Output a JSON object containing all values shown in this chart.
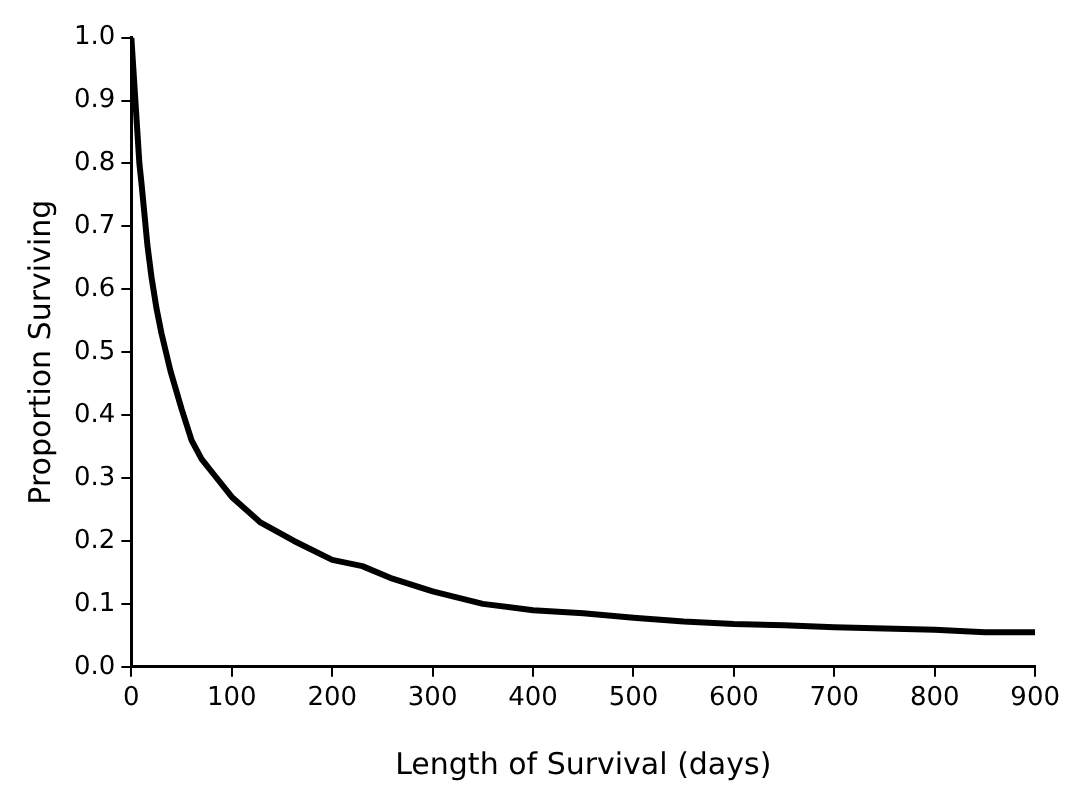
{
  "chart_data": {
    "type": "line",
    "xlabel": "Length of Survival (days)",
    "ylabel": "Proportion Surviving",
    "x": [
      0,
      2,
      4,
      6,
      8,
      10,
      13,
      16,
      20,
      25,
      30,
      39,
      50,
      60,
      70,
      80,
      100,
      128,
      162,
      200,
      230,
      260,
      300,
      350,
      400,
      450,
      500,
      550,
      600,
      650,
      700,
      750,
      800,
      850,
      900
    ],
    "series": [
      {
        "color": "#000000",
        "values": [
          1.0,
          0.95,
          0.9,
          0.85,
          0.8,
          0.77,
          0.72,
          0.67,
          0.62,
          0.57,
          0.53,
          0.47,
          0.41,
          0.36,
          0.33,
          0.31,
          0.27,
          0.23,
          0.2,
          0.17,
          0.16,
          0.14,
          0.12,
          0.1,
          0.09,
          0.085,
          0.078,
          0.072,
          0.068,
          0.066,
          0.063,
          0.061,
          0.059,
          0.055,
          0.055
        ]
      }
    ],
    "xlim": [
      0,
      900
    ],
    "xticks": [
      0,
      100,
      200,
      300,
      400,
      500,
      600,
      700,
      800,
      900
    ],
    "ylim": [
      0,
      1
    ],
    "yticks": [
      {
        "value": 0,
        "label": "0.0"
      },
      {
        "value": 0.1,
        "label": "0.1"
      },
      {
        "value": 0.2,
        "label": "0.2"
      },
      {
        "value": 0.3,
        "label": "0.3"
      },
      {
        "value": 0.4,
        "label": "0.4"
      },
      {
        "value": 0.5,
        "label": "0.5"
      },
      {
        "value": 0.6,
        "label": "0.6"
      },
      {
        "value": 0.7,
        "label": "0.7"
      },
      {
        "value": 0.8,
        "label": "0.8"
      },
      {
        "value": 0.9,
        "label": "0.9"
      },
      {
        "value": 1,
        "label": "1.0"
      }
    ],
    "grid": false,
    "legend": false,
    "marker": "none",
    "line_style": "solid"
  }
}
